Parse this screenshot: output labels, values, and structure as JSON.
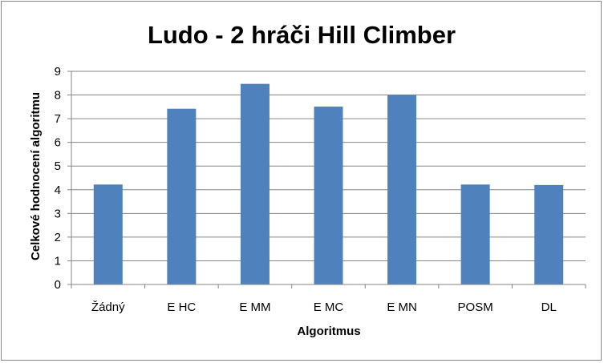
{
  "chart_data": {
    "type": "bar",
    "title": "Ludo - 2  hráči Hill Climber",
    "xlabel": "Algoritmus",
    "ylabel": "Celkové hodnocení algoritmu",
    "categories": [
      "Žádný",
      "E HC",
      "E MM",
      "E MC",
      "E MN",
      "POSM",
      "DL"
    ],
    "values": [
      4.22,
      7.42,
      8.47,
      7.51,
      8.0,
      4.22,
      4.2
    ],
    "ylim": [
      0,
      9
    ],
    "yticks": [
      "0",
      "1",
      "2",
      "3",
      "4",
      "5",
      "6",
      "7",
      "8",
      "9"
    ],
    "grid": true,
    "legend": "none",
    "bar_color": "#4F81BD",
    "grid_color": "#868686"
  }
}
